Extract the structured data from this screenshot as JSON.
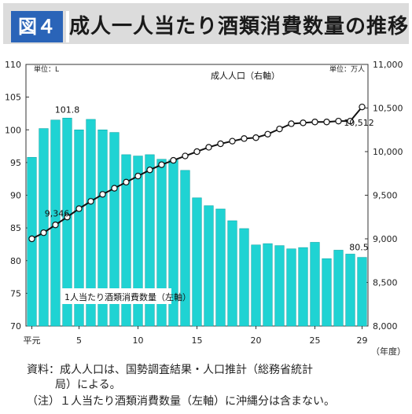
{
  "header": {
    "figure_label": "図４",
    "title": "成人一人当たり酒類消費数量の推移"
  },
  "chart_data": {
    "type": "bar+line",
    "left_axis": {
      "unit_label": "単位：L",
      "ylim": [
        70,
        110
      ],
      "ticks": [
        70,
        75,
        80,
        85,
        90,
        95,
        100,
        105,
        110
      ]
    },
    "right_axis": {
      "unit_label": "単位：万人",
      "ylim": [
        8000,
        11000
      ],
      "ticks": [
        8000,
        8500,
        9000,
        9500,
        10000,
        10500,
        11000
      ],
      "tick_labels": [
        "8,000",
        "8,500",
        "9,000",
        "9,500",
        "10,000",
        "10,500",
        "11,000"
      ]
    },
    "x_tick_labels": [
      {
        "index": 0,
        "label": "平元"
      },
      {
        "index": 4,
        "label": "5"
      },
      {
        "index": 9,
        "label": "10"
      },
      {
        "index": 14,
        "label": "15"
      },
      {
        "index": 19,
        "label": "20"
      },
      {
        "index": 24,
        "label": "25"
      },
      {
        "index": 28,
        "label": "29"
      }
    ],
    "x_unit": "（年度）",
    "bars": {
      "name": "1人当たり酒類消費数量（左軸）",
      "color": "#1fd3d3",
      "values": [
        95.8,
        100.2,
        101.5,
        101.8,
        100.0,
        101.6,
        100.0,
        99.6,
        96.2,
        96.0,
        96.2,
        95.5,
        95.4,
        93.8,
        89.6,
        88.4,
        87.9,
        86.1,
        84.9,
        82.4,
        82.6,
        82.3,
        81.8,
        82.0,
        82.8,
        80.3,
        81.6,
        81.0,
        80.5
      ]
    },
    "line": {
      "name": "成人人口（右軸）",
      "values": [
        9000,
        9070,
        9160,
        9250,
        9346,
        9430,
        9510,
        9580,
        9650,
        9720,
        9790,
        9850,
        9900,
        9950,
        10000,
        10050,
        10090,
        10120,
        10150,
        10160,
        10200,
        10260,
        10320,
        10330,
        10340,
        10340,
        10350,
        10350,
        10512
      ]
    },
    "annotations": [
      {
        "text": "101.8",
        "series": "bars",
        "index": 3
      },
      {
        "text": "80.5",
        "series": "bars",
        "index": 28
      },
      {
        "text": "9,346",
        "series": "line",
        "index": 4
      },
      {
        "text": "10,512",
        "series": "line",
        "index": 28
      }
    ]
  },
  "notes": {
    "line1": "資料：成人人口は、国勢調査結果・人口推計（総務省統計",
    "line2": "局）による。",
    "line3": "（注）１人当たり酒類消費数量（左軸）に沖縄分は含まない。"
  }
}
